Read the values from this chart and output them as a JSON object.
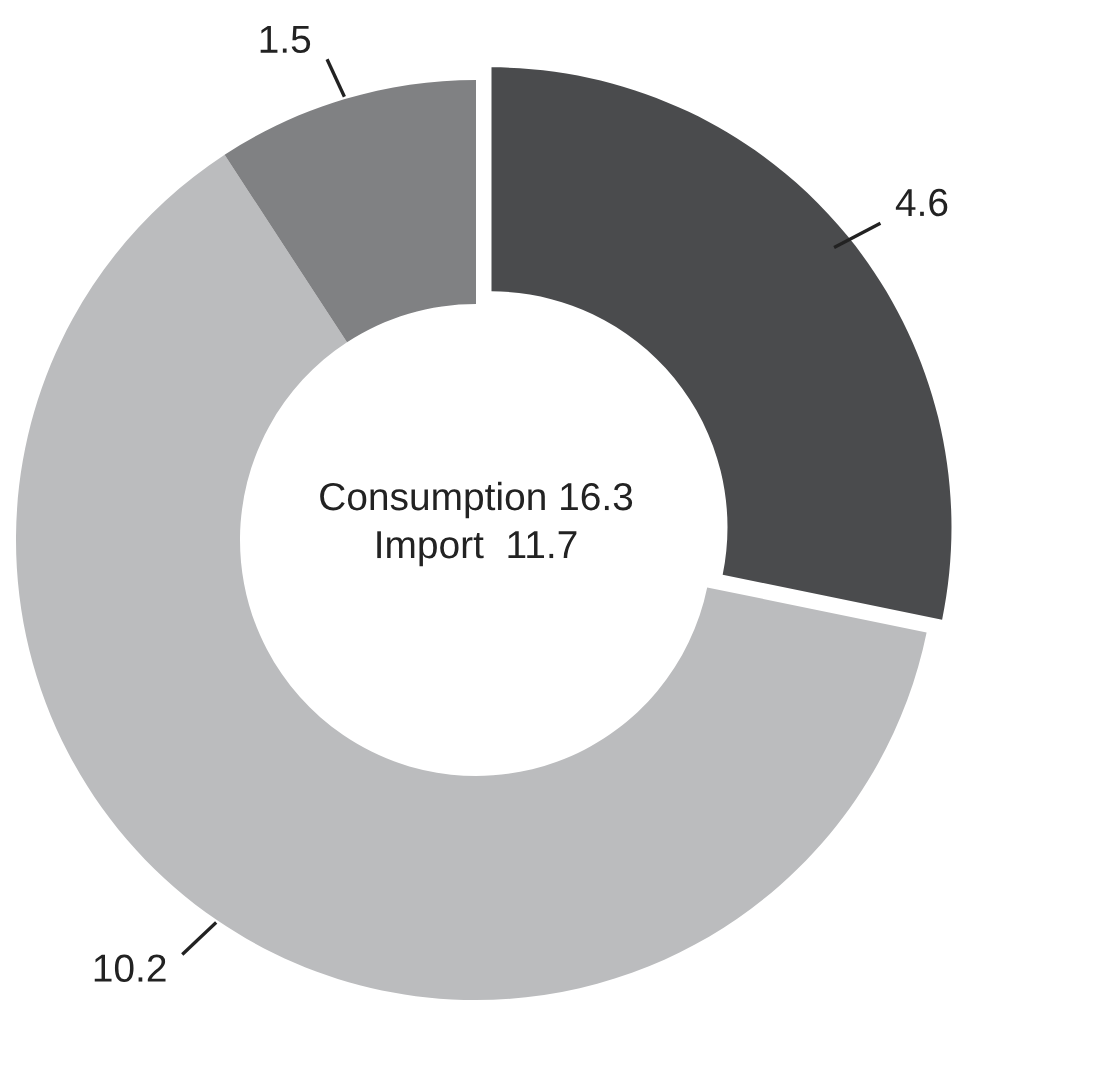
{
  "chart_data": {
    "type": "donut",
    "categories": [
      null,
      null,
      null
    ],
    "values": [
      4.6,
      10.2,
      1.5
    ],
    "colors": [
      "#4a4b4d",
      "#bbbcbe",
      "#808183"
    ],
    "data_labels": true,
    "annotations": [
      "Consumption 16.3",
      "Import  11.7"
    ]
  }
}
